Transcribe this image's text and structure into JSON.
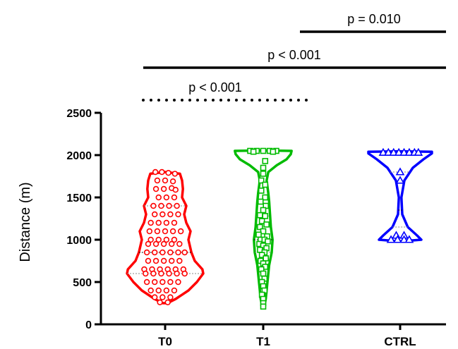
{
  "chart_data": {
    "type": "violin",
    "ylabel": "Distance (m)",
    "ylim": [
      0,
      2500
    ],
    "yticks": [
      "0",
      "500",
      "1000",
      "1500",
      "2000",
      "2500"
    ],
    "ytick_values": [
      0,
      500,
      1000,
      1500,
      2000,
      2500
    ],
    "categories": [
      "T0",
      "T1",
      "CTRL"
    ],
    "groups": [
      {
        "name": "T0",
        "color": "#ff0000",
        "marker": "circle",
        "min": 250,
        "max": 1800,
        "q1": 600,
        "median": 850,
        "q3": 1400,
        "points": [
          [
            -0.15,
            1800
          ],
          [
            -0.05,
            1800
          ],
          [
            0.05,
            1790
          ],
          [
            0.15,
            1780
          ],
          [
            -0.12,
            1700
          ],
          [
            0.0,
            1700
          ],
          [
            0.12,
            1690
          ],
          [
            -0.14,
            1600
          ],
          [
            -0.02,
            1600
          ],
          [
            0.1,
            1610
          ],
          [
            0.16,
            1590
          ],
          [
            -0.1,
            1500
          ],
          [
            0.02,
            1500
          ],
          [
            0.14,
            1500
          ],
          [
            -0.18,
            1400
          ],
          [
            -0.06,
            1400
          ],
          [
            0.06,
            1400
          ],
          [
            0.18,
            1400
          ],
          [
            -0.16,
            1300
          ],
          [
            -0.04,
            1300
          ],
          [
            0.08,
            1300
          ],
          [
            0.2,
            1300
          ],
          [
            -0.22,
            1200
          ],
          [
            -0.1,
            1200
          ],
          [
            0.02,
            1200
          ],
          [
            0.14,
            1200
          ],
          [
            -0.24,
            1100
          ],
          [
            -0.12,
            1100
          ],
          [
            0.0,
            1100
          ],
          [
            0.12,
            1100
          ],
          [
            0.24,
            1100
          ],
          [
            -0.22,
            1000
          ],
          [
            -0.1,
            1000
          ],
          [
            0.02,
            1000
          ],
          [
            0.14,
            1000
          ],
          [
            -0.26,
            950
          ],
          [
            -0.14,
            950
          ],
          [
            -0.02,
            950
          ],
          [
            0.1,
            950
          ],
          [
            0.22,
            950
          ],
          [
            -0.28,
            850
          ],
          [
            -0.16,
            850
          ],
          [
            -0.04,
            850
          ],
          [
            0.08,
            850
          ],
          [
            0.2,
            850
          ],
          [
            0.3,
            850
          ],
          [
            -0.26,
            750
          ],
          [
            -0.14,
            750
          ],
          [
            -0.02,
            750
          ],
          [
            0.1,
            750
          ],
          [
            0.22,
            750
          ],
          [
            -0.32,
            650
          ],
          [
            -0.2,
            650
          ],
          [
            -0.08,
            650
          ],
          [
            0.04,
            650
          ],
          [
            0.16,
            650
          ],
          [
            0.28,
            650
          ],
          [
            -0.3,
            600
          ],
          [
            -0.18,
            600
          ],
          [
            -0.06,
            600
          ],
          [
            0.06,
            600
          ],
          [
            0.18,
            600
          ],
          [
            0.3,
            600
          ],
          [
            -0.28,
            500
          ],
          [
            -0.16,
            500
          ],
          [
            -0.04,
            500
          ],
          [
            0.08,
            500
          ],
          [
            0.2,
            500
          ],
          [
            -0.22,
            400
          ],
          [
            -0.1,
            400
          ],
          [
            0.02,
            400
          ],
          [
            0.14,
            400
          ],
          [
            -0.16,
            320
          ],
          [
            -0.04,
            320
          ],
          [
            0.08,
            320
          ],
          [
            -0.08,
            260
          ],
          [
            0.04,
            260
          ]
        ]
      },
      {
        "name": "T1",
        "color": "#00bb00",
        "marker": "square",
        "min": 200,
        "max": 2050,
        "q1": 850,
        "median": 1000,
        "q3": 1280,
        "points": [
          [
            -0.2,
            2050
          ],
          [
            -0.1,
            2050
          ],
          [
            0.0,
            2050
          ],
          [
            0.1,
            2050
          ],
          [
            0.2,
            2050
          ],
          [
            -0.15,
            2040
          ],
          [
            0.15,
            2040
          ],
          [
            0.03,
            1930
          ],
          [
            0.0,
            1850
          ],
          [
            0.0,
            1780
          ],
          [
            -0.03,
            1700
          ],
          [
            0.03,
            1650
          ],
          [
            -0.03,
            1580
          ],
          [
            0.03,
            1500
          ],
          [
            -0.04,
            1450
          ],
          [
            0.04,
            1400
          ],
          [
            0.0,
            1350
          ],
          [
            -0.05,
            1290
          ],
          [
            0.03,
            1280
          ],
          [
            -0.02,
            1220
          ],
          [
            0.05,
            1180
          ],
          [
            -0.05,
            1150
          ],
          [
            0.0,
            1100
          ],
          [
            -0.07,
            1060
          ],
          [
            0.06,
            1040
          ],
          [
            -0.04,
            1000
          ],
          [
            0.02,
            1000
          ],
          [
            0.07,
            980
          ],
          [
            -0.06,
            950
          ],
          [
            0.0,
            930
          ],
          [
            0.05,
            900
          ],
          [
            -0.05,
            880
          ],
          [
            0.02,
            850
          ],
          [
            -0.02,
            820
          ],
          [
            0.04,
            780
          ],
          [
            -0.04,
            750
          ],
          [
            0.0,
            720
          ],
          [
            0.03,
            680
          ],
          [
            -0.03,
            650
          ],
          [
            0.0,
            600
          ],
          [
            0.02,
            540
          ],
          [
            -0.02,
            500
          ],
          [
            0.0,
            450
          ],
          [
            0.02,
            400
          ],
          [
            -0.02,
            350
          ],
          [
            0.0,
            300
          ],
          [
            0.0,
            250
          ],
          [
            0.0,
            210
          ]
        ]
      },
      {
        "name": "CTRL",
        "color": "#0000ff",
        "marker": "triangle",
        "min": 1000,
        "max": 2050,
        "q1": 1150,
        "median": 1350,
        "q3": 1800,
        "points": [
          [
            -0.26,
            2030
          ],
          [
            -0.18,
            2030
          ],
          [
            -0.1,
            2030
          ],
          [
            -0.02,
            2030
          ],
          [
            0.06,
            2030
          ],
          [
            0.14,
            2030
          ],
          [
            0.22,
            2030
          ],
          [
            0.28,
            2030
          ],
          [
            0.0,
            1800
          ],
          [
            0.0,
            1700
          ],
          [
            -0.06,
            1050
          ],
          [
            0.06,
            1050
          ],
          [
            -0.14,
            1000
          ],
          [
            -0.04,
            1000
          ],
          [
            0.06,
            1000
          ],
          [
            0.14,
            1000
          ]
        ]
      }
    ],
    "significance": [
      {
        "label": "p = 0.010",
        "from": "T1",
        "to": "CTRL",
        "style": "solid"
      },
      {
        "label": "p < 0.001",
        "from": "T0",
        "to": "CTRL",
        "style": "solid"
      },
      {
        "label": "p < 0.001",
        "from": "T0",
        "to": "T1",
        "style": "dotted"
      }
    ]
  }
}
